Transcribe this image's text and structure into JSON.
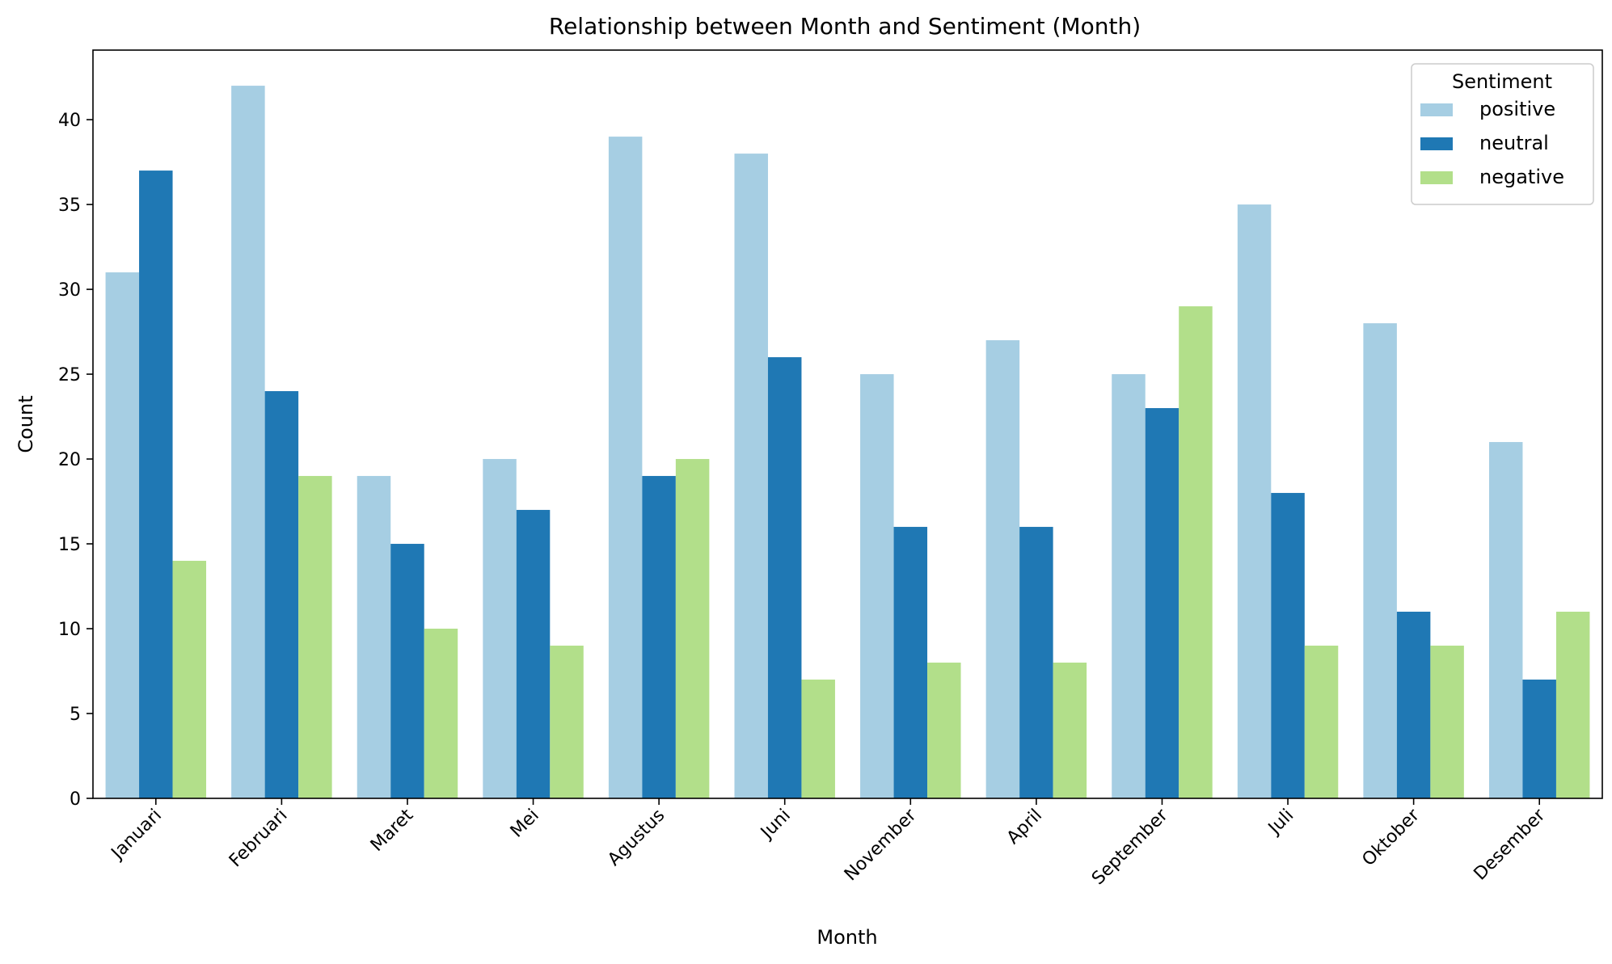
{
  "chart_data": {
    "type": "bar",
    "title": "Relationship between Month and Sentiment (Month)",
    "xlabel": "Month",
    "ylabel": "Count",
    "ylim": [
      0,
      44.1
    ],
    "yticks": [
      0,
      5,
      10,
      15,
      20,
      25,
      30,
      35,
      40
    ],
    "categories": [
      "Januari",
      "Februari",
      "Maret",
      "Mei",
      "Agustus",
      "Juni",
      "November",
      "April",
      "September",
      "Juli",
      "Oktober",
      "Desember"
    ],
    "series": [
      {
        "name": "positive",
        "color": "#a6cee3",
        "values": [
          31,
          42,
          19,
          20,
          39,
          38,
          25,
          27,
          25,
          35,
          28,
          21
        ]
      },
      {
        "name": "neutral",
        "color": "#1f78b4",
        "values": [
          37,
          24,
          15,
          17,
          19,
          26,
          16,
          16,
          23,
          18,
          11,
          7
        ]
      },
      {
        "name": "negative",
        "color": "#b2df8a",
        "values": [
          14,
          19,
          10,
          9,
          20,
          7,
          8,
          8,
          29,
          9,
          9,
          11
        ]
      }
    ],
    "legend": {
      "title": "Sentiment",
      "placement": "top-right"
    },
    "grid": false
  }
}
